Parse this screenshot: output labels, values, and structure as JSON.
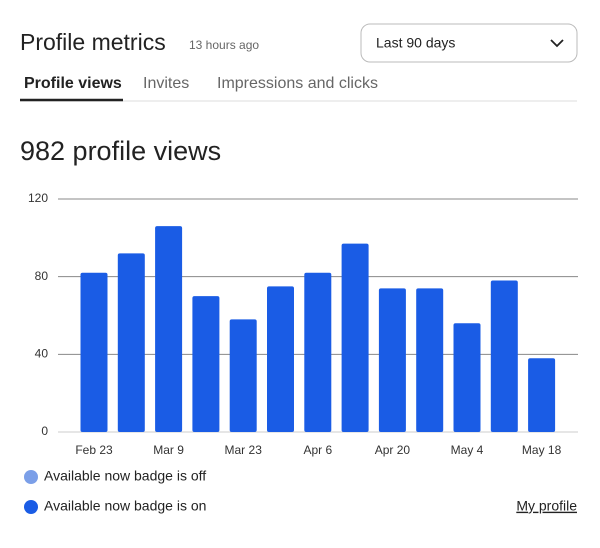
{
  "header": {
    "title": "Profile metrics",
    "updated": "13 hours ago",
    "dropdown": "Last 90 days"
  },
  "tabs": [
    "Profile views",
    "Invites",
    "Impressions and clicks"
  ],
  "headline": "982 profile views",
  "chart_data": {
    "type": "bar",
    "categories": [
      "Feb 23",
      null,
      "Mar 9",
      null,
      "Mar 23",
      null,
      "Apr 6",
      null,
      "Apr 20",
      null,
      "May 4",
      null,
      "May 18"
    ],
    "values": [
      82,
      92,
      106,
      70,
      58,
      75,
      82,
      97,
      74,
      74,
      56,
      78,
      38
    ],
    "color": "#1a5ce5",
    "ylim": [
      0,
      120
    ],
    "yticks": [
      0,
      40,
      80,
      120
    ],
    "grid": true,
    "legend": [
      {
        "name": "Available now badge is off",
        "color": "#7b9fe8"
      },
      {
        "name": "Available now badge is on",
        "color": "#1a5ce5"
      }
    ]
  },
  "link": "My profile"
}
